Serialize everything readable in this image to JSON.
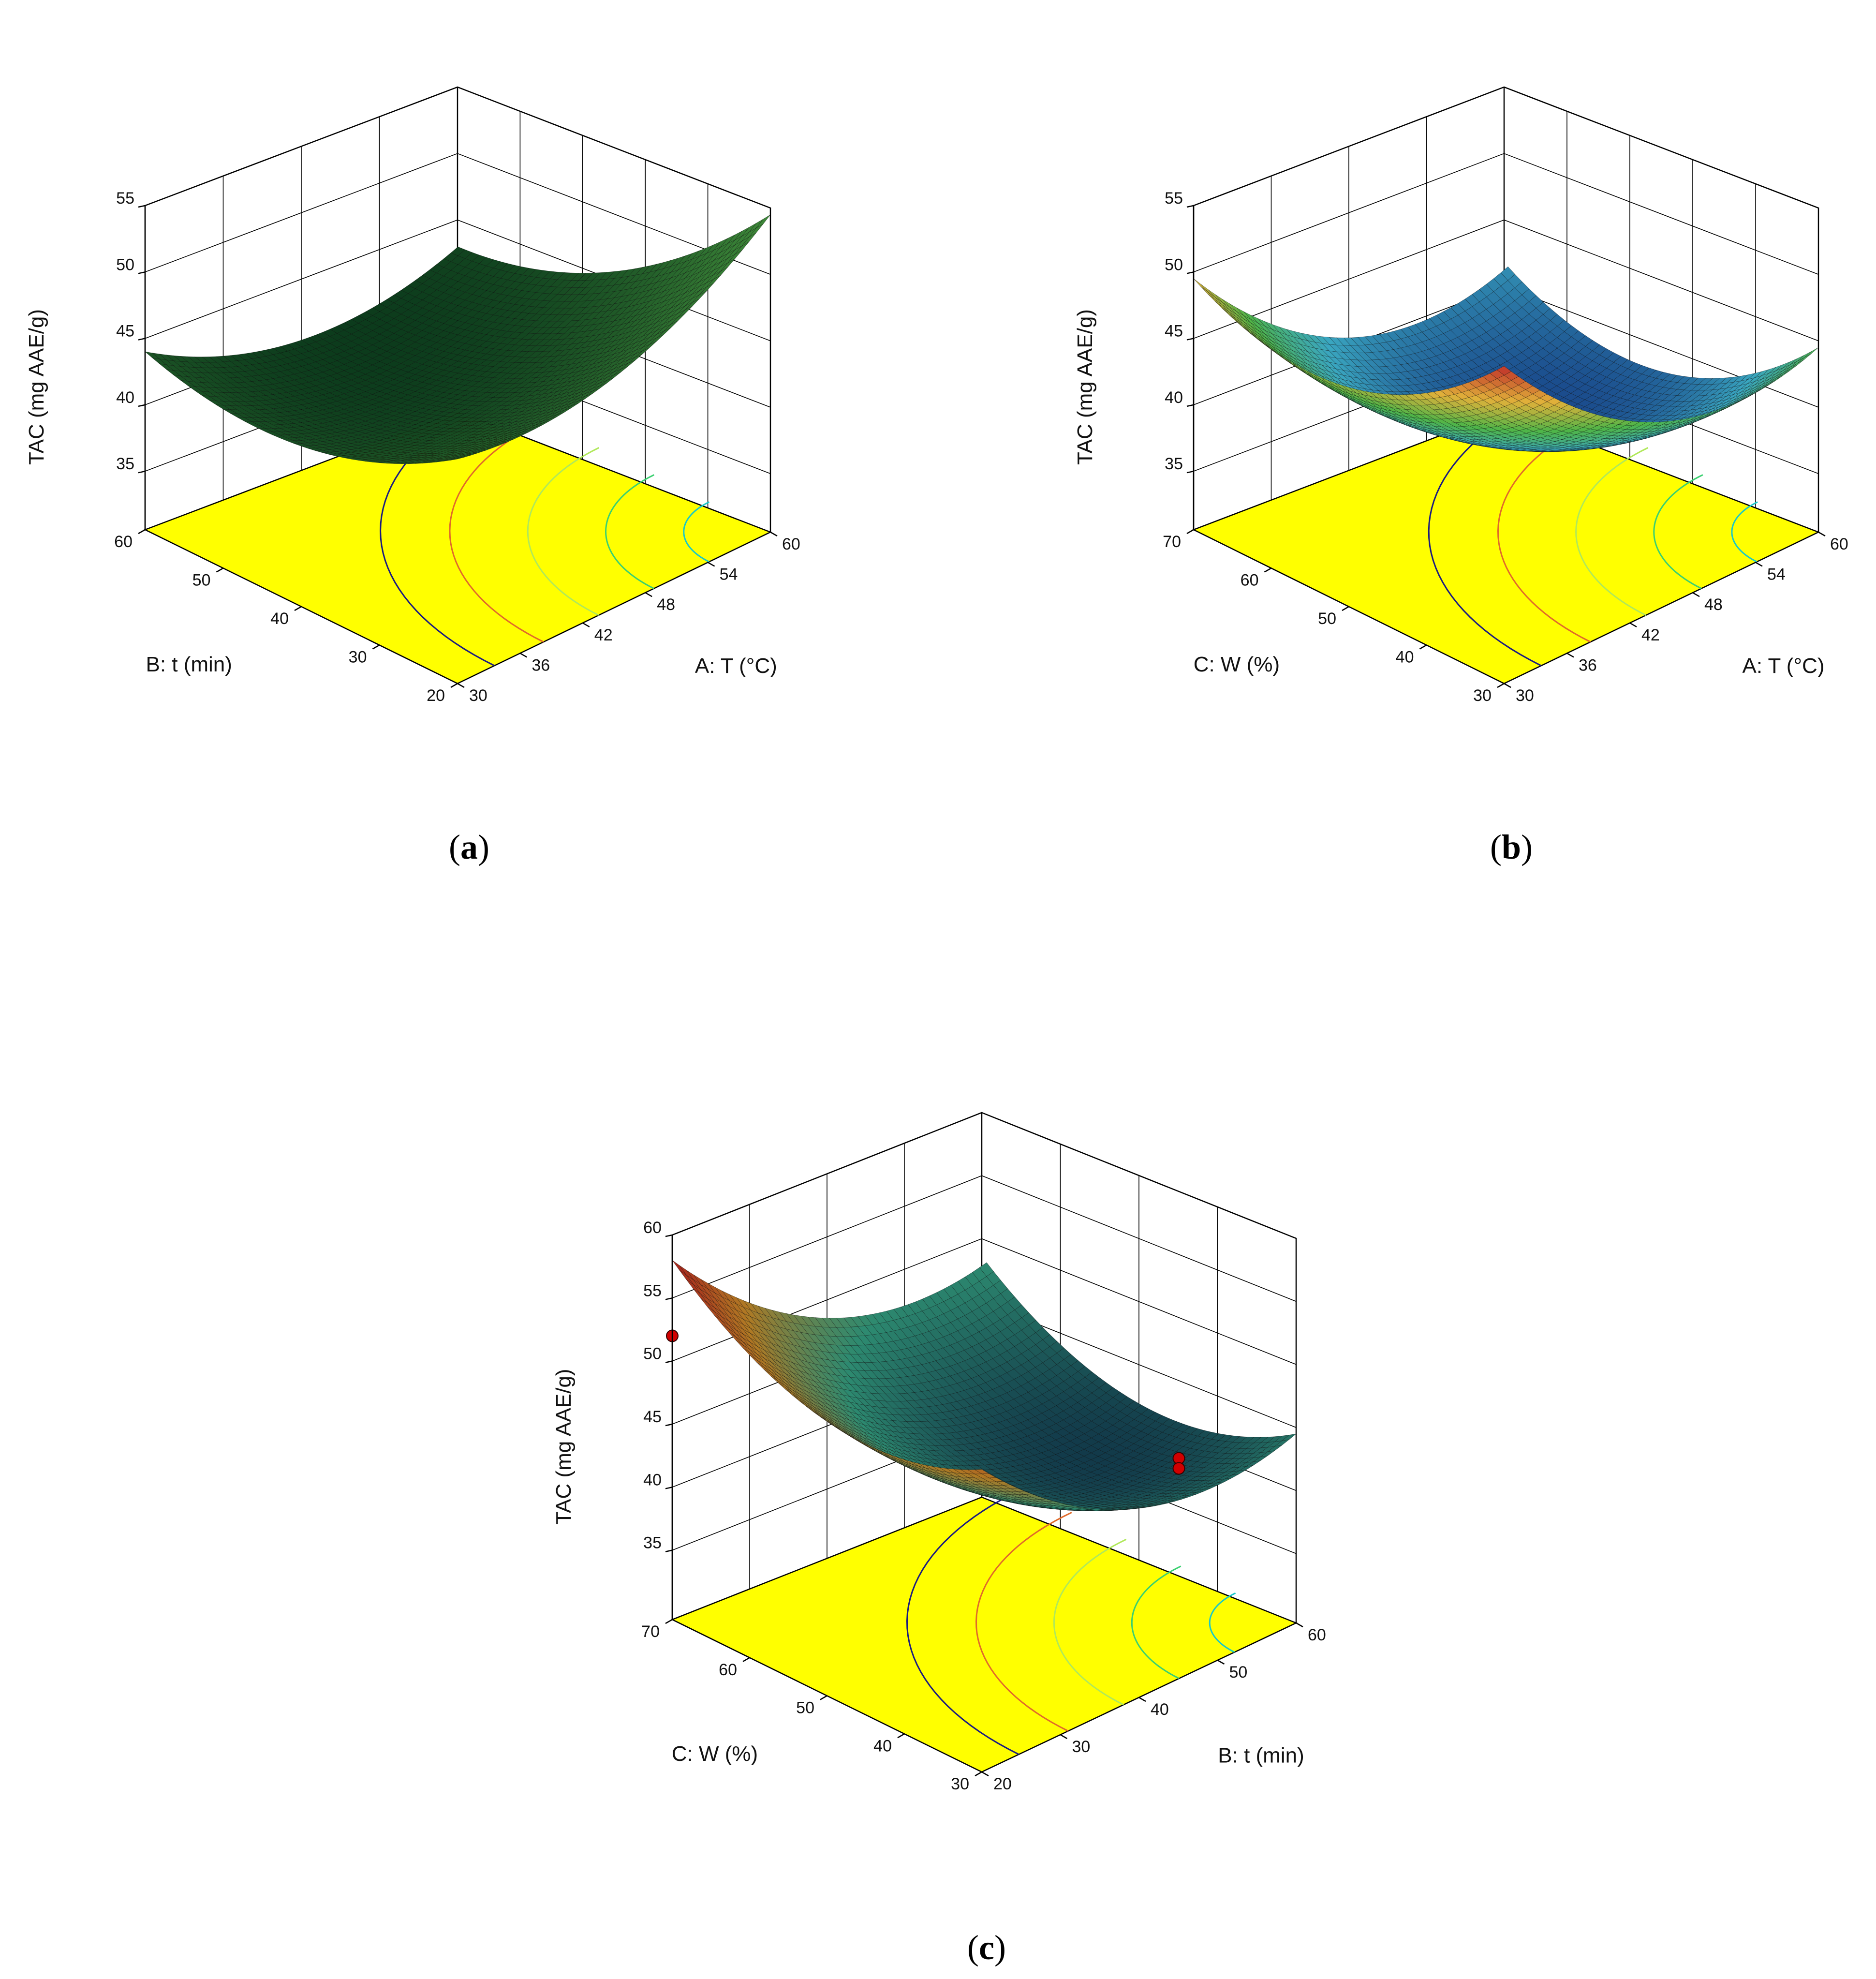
{
  "chart_data": [
    {
      "type": "surface",
      "panel": "a",
      "caption": "a",
      "zlabel": "TAC (mg AAE/g)",
      "xlabel": "A: T (°C)",
      "ylabel": "B: t (min)",
      "zlim": [
        35,
        55
      ],
      "xlim": [
        30,
        60
      ],
      "ylim": [
        20,
        60
      ],
      "z_ticks": [
        "35",
        "40",
        "45",
        "50",
        "55"
      ],
      "x_ticks": [
        "30",
        "36",
        "42",
        "48",
        "54",
        "60"
      ],
      "y_ticks": [
        "20",
        "30",
        "40",
        "50",
        "60"
      ],
      "surface_corners": {
        "x_min_y_min": 47.5,
        "x_max_y_min": 54.5,
        "x_min_y_max": 44.0,
        "x_max_y_max": 40.5,
        "minimum": 39.8
      },
      "floor_color": "#ffff00",
      "surface_colors": [
        "#0c3b1c",
        "#3f8a3a"
      ],
      "grid": true,
      "design_points": []
    },
    {
      "type": "surface",
      "panel": "b",
      "caption": "b",
      "zlabel": "TAC (mg AAE/g)",
      "xlabel": "A: T (°C)",
      "ylabel": "C: W (%)",
      "zlim": [
        35,
        55
      ],
      "xlim": [
        30,
        60
      ],
      "ylim": [
        30,
        70
      ],
      "z_ticks": [
        "35",
        "40",
        "45",
        "50",
        "55"
      ],
      "x_ticks": [
        "30",
        "36",
        "42",
        "48",
        "54",
        "60"
      ],
      "y_ticks": [
        "30",
        "40",
        "50",
        "60",
        "70"
      ],
      "surface_corners": {
        "x_min_y_min": 54.5,
        "x_max_y_min": 44.5,
        "x_min_y_max": 49.5,
        "x_max_y_max": 39.0,
        "minimum": 36.0
      },
      "floor_color": "#ffff00",
      "surface_colors": [
        "#1a4a8c",
        "#3aa6c0",
        "#4fb548",
        "#e0b13a",
        "#c0302a"
      ],
      "grid": true,
      "design_points": []
    },
    {
      "type": "surface",
      "panel": "c",
      "caption": "c",
      "zlabel": "TAC (mg AAE/g)",
      "xlabel": "B: t (min)",
      "ylabel": "C: W (%)",
      "zlim": [
        35,
        60
      ],
      "xlim": [
        20,
        60
      ],
      "ylim": [
        30,
        70
      ],
      "z_ticks": [
        "35",
        "40",
        "45",
        "50",
        "55",
        "60"
      ],
      "x_ticks": [
        "20",
        "30",
        "40",
        "50",
        "60"
      ],
      "y_ticks": [
        "30",
        "40",
        "50",
        "60",
        "70"
      ],
      "surface_corners": {
        "x_min_y_min": 53.5,
        "x_max_y_min": 44.5,
        "x_min_y_max": 58.0,
        "x_max_y_max": 46.0,
        "minimum": 40.5
      },
      "floor_color": "#ffff00",
      "surface_colors": [
        "#123a4a",
        "#2d8a70",
        "#b07a24",
        "#a8201c"
      ],
      "grid": true,
      "design_points": [
        {
          "x": 20,
          "y": 70,
          "z": 52.0
        },
        {
          "x": 50,
          "y": 35,
          "z": 44.0
        },
        {
          "x": 50,
          "y": 35,
          "z": 43.2
        }
      ]
    }
  ]
}
